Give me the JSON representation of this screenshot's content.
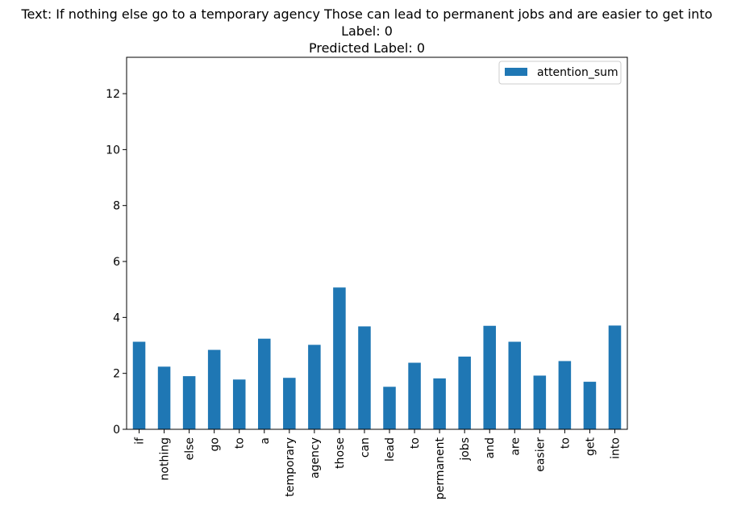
{
  "chart_data": {
    "type": "bar",
    "title_lines": [
      "Text: If nothing else go to a temporary agency Those can lead to permanent jobs and are easier to get into",
      "Label: 0",
      "Predicted Label: 0"
    ],
    "xlabel": "",
    "ylabel": "",
    "ylim": [
      0,
      13.3
    ],
    "yticks": [
      0,
      2,
      4,
      6,
      8,
      10,
      12
    ],
    "grid": false,
    "legend_position": "top-right",
    "bar_color": "#1f77b4",
    "categories": [
      "if",
      "nothing",
      "else",
      "go",
      "to",
      "a",
      "temporary",
      "agency",
      "those",
      "can",
      "lead",
      "to",
      "permanent",
      "jobs",
      "and",
      "are",
      "easier",
      "to",
      "get",
      "into"
    ],
    "series": [
      {
        "name": "attention_sum",
        "values": [
          3.13,
          2.24,
          1.9,
          2.84,
          1.78,
          3.24,
          1.84,
          3.02,
          5.07,
          3.68,
          1.52,
          2.38,
          1.82,
          2.6,
          3.7,
          3.13,
          1.92,
          2.44,
          1.7,
          3.71
        ]
      }
    ]
  }
}
